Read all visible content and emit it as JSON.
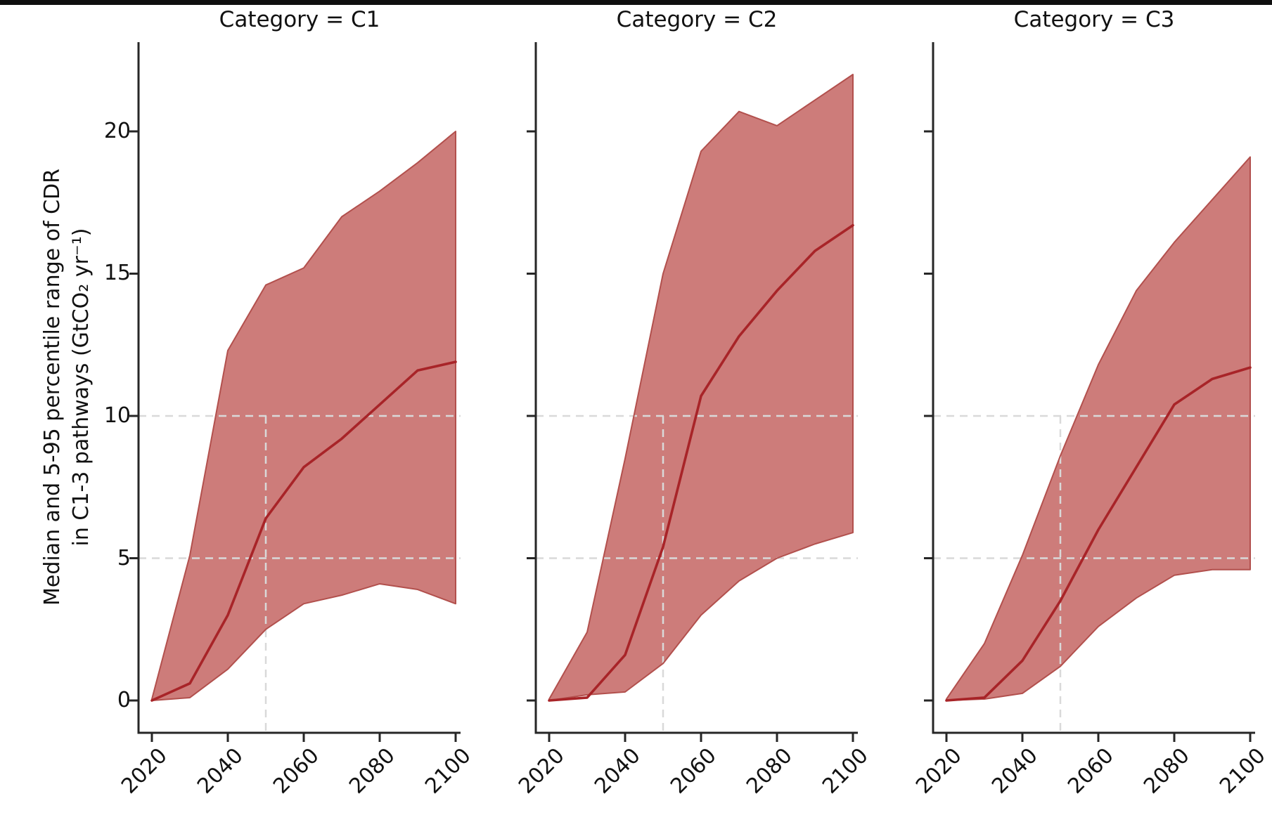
{
  "window": {
    "top_border": ""
  },
  "y_axis": {
    "label_line1": "Median and 5-95 percentile range of CDR",
    "label_line2": "in C1-3 pathways (GtCO₂ yr⁻¹)",
    "tick_labels": [
      "0",
      "5",
      "10",
      "15",
      "20"
    ]
  },
  "x_axis": {
    "tick_labels": [
      "2020",
      "2040",
      "2060",
      "2080",
      "2100"
    ]
  },
  "panels": [
    {
      "title": "Category = C1"
    },
    {
      "title": "Category = C2"
    },
    {
      "title": "Category = C3"
    }
  ],
  "style": {
    "band_fill": "#cd7c7a",
    "band_edge": "#b2504d",
    "median_color": "#a82428",
    "ref_color": "#d9d9d9",
    "spine_color": "#262626"
  },
  "chart_data": [
    {
      "type": "area",
      "title": "Category = C1",
      "xlabel": "",
      "ylabel": "Median and 5-95 percentile range of CDR in C1-3 pathways (GtCO2 yr-1)",
      "x": [
        2020,
        2030,
        2040,
        2050,
        2060,
        2070,
        2080,
        2090,
        2100
      ],
      "series": [
        {
          "name": "percentile_95_upper",
          "values": [
            0.05,
            5.1,
            12.3,
            14.6,
            15.2,
            17.0,
            17.9,
            18.9,
            20.0
          ]
        },
        {
          "name": "median",
          "values": [
            0.0,
            0.6,
            3.0,
            6.4,
            8.2,
            9.2,
            10.4,
            11.6,
            11.9
          ]
        },
        {
          "name": "percentile_5_lower",
          "values": [
            0.0,
            0.1,
            1.1,
            2.5,
            3.4,
            3.7,
            4.1,
            3.9,
            3.4
          ]
        }
      ],
      "yticks": [
        0,
        5,
        10,
        15,
        20
      ],
      "xticks": [
        2020,
        2040,
        2060,
        2080,
        2100
      ],
      "ylim": [
        -1.13,
        23.1
      ],
      "xlim": [
        2016.5,
        2101.3
      ],
      "grid": "dashed reference lines only",
      "legend": "none",
      "ref_h": [
        5,
        10
      ],
      "ref_v": [
        2050
      ]
    },
    {
      "type": "area",
      "title": "Category = C2",
      "xlabel": "",
      "ylabel": "Median and 5-95 percentile range of CDR in C1-3 pathways (GtCO2 yr-1)",
      "x": [
        2020,
        2030,
        2040,
        2050,
        2060,
        2070,
        2080,
        2090,
        2100
      ],
      "series": [
        {
          "name": "percentile_95_upper",
          "values": [
            0.05,
            2.4,
            8.5,
            15.0,
            19.3,
            20.7,
            20.2,
            21.1,
            22.0
          ]
        },
        {
          "name": "median",
          "values": [
            0.0,
            0.1,
            1.6,
            5.4,
            10.7,
            12.8,
            14.4,
            15.8,
            16.7
          ]
        },
        {
          "name": "percentile_5_lower",
          "values": [
            0.0,
            0.2,
            0.3,
            1.3,
            3.0,
            4.2,
            5.0,
            5.5,
            5.9
          ]
        }
      ],
      "yticks": [
        0,
        5,
        10,
        15,
        20
      ],
      "xticks": [
        2020,
        2040,
        2060,
        2080,
        2100
      ],
      "ylim": [
        -1.13,
        23.1
      ],
      "xlim": [
        2016.5,
        2101.3
      ],
      "grid": "dashed reference lines only",
      "legend": "none",
      "ref_h": [
        5,
        10
      ],
      "ref_v": [
        2050
      ]
    },
    {
      "type": "area",
      "title": "Category = C3",
      "xlabel": "",
      "ylabel": "Median and 5-95 percentile range of CDR in C1-3 pathways (GtCO2 yr-1)",
      "x": [
        2020,
        2030,
        2040,
        2050,
        2060,
        2070,
        2080,
        2090,
        2100
      ],
      "series": [
        {
          "name": "percentile_95_upper",
          "values": [
            0.05,
            2.0,
            5.1,
            8.6,
            11.8,
            14.4,
            16.1,
            17.6,
            19.1
          ]
        },
        {
          "name": "median",
          "values": [
            0.0,
            0.1,
            1.4,
            3.5,
            6.0,
            8.2,
            10.4,
            11.3,
            11.7
          ]
        },
        {
          "name": "percentile_5_lower",
          "values": [
            0.0,
            0.05,
            0.25,
            1.2,
            2.6,
            3.6,
            4.4,
            4.6,
            4.6
          ]
        }
      ],
      "yticks": [
        0,
        5,
        10,
        15,
        20
      ],
      "xticks": [
        2020,
        2040,
        2060,
        2080,
        2100
      ],
      "ylim": [
        -1.13,
        23.1
      ],
      "xlim": [
        2016.5,
        2101.3
      ],
      "grid": "dashed reference lines only",
      "legend": "none",
      "ref_h": [
        5,
        10
      ],
      "ref_v": [
        2050
      ]
    }
  ]
}
